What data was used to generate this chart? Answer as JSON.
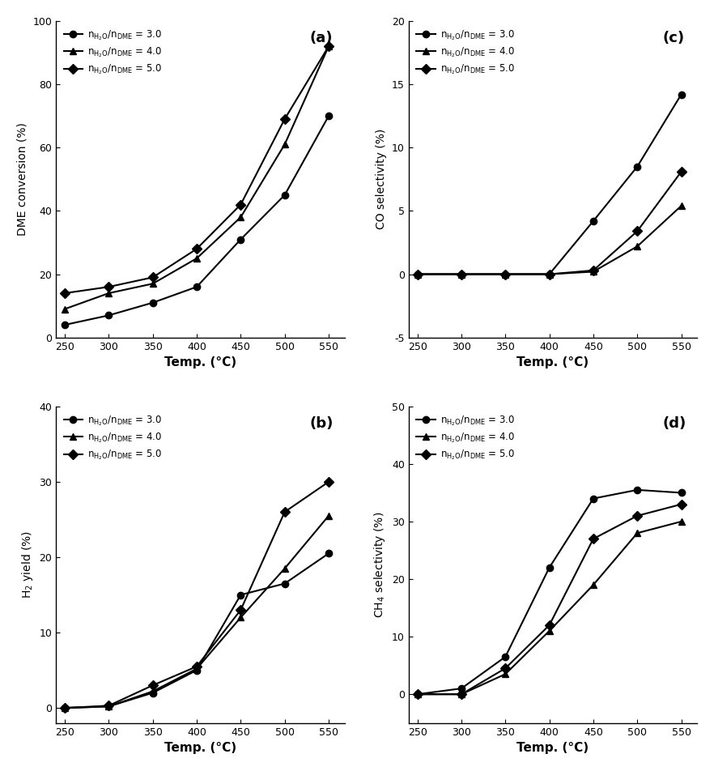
{
  "temp": [
    250,
    300,
    350,
    400,
    450,
    500,
    550
  ],
  "panel_a": {
    "title": "(a)",
    "ylabel": "DME conversion (%)",
    "ylim": [
      0,
      100
    ],
    "yticks": [
      0,
      20,
      40,
      60,
      80,
      100
    ],
    "series": {
      "r3": [
        4,
        7,
        11,
        16,
        31,
        45,
        70
      ],
      "r4": [
        9,
        14,
        17,
        25,
        38,
        61,
        92
      ],
      "r5": [
        14,
        16,
        19,
        28,
        42,
        69,
        92
      ]
    }
  },
  "panel_b": {
    "title": "(b)",
    "ylabel": "H$_2$ yield (%)",
    "ylim": [
      -2,
      40
    ],
    "yticks": [
      0,
      10,
      20,
      30,
      40
    ],
    "series": {
      "r3": [
        0.0,
        0.2,
        2.0,
        5.0,
        15,
        16.5,
        20.5
      ],
      "r4": [
        0.0,
        0.2,
        2.2,
        5.2,
        12,
        18.5,
        25.5
      ],
      "r5": [
        0.0,
        0.3,
        3.0,
        5.5,
        13,
        26,
        30
      ]
    }
  },
  "panel_c": {
    "title": "(c)",
    "ylabel": "CO selectivity (%)",
    "ylim": [
      -5,
      20
    ],
    "yticks": [
      -5,
      0,
      5,
      10,
      15,
      20
    ],
    "series": {
      "r3": [
        0,
        0,
        0,
        0,
        4.2,
        8.5,
        14.2
      ],
      "r4": [
        0,
        0,
        0,
        0,
        0.2,
        2.2,
        5.4
      ],
      "r5": [
        0,
        0,
        0,
        0,
        0.3,
        3.4,
        8.1
      ]
    }
  },
  "panel_d": {
    "title": "(d)",
    "ylabel": "CH$_4$ selectivity (%)",
    "ylim": [
      -5,
      50
    ],
    "yticks": [
      0,
      10,
      20,
      30,
      40,
      50
    ],
    "series": {
      "r3": [
        0,
        1,
        6.5,
        22,
        34,
        35.5,
        35
      ],
      "r4": [
        0,
        0,
        3.5,
        11,
        19,
        28,
        30
      ],
      "r5": [
        0,
        0,
        4.5,
        12,
        27,
        31,
        33
      ]
    }
  },
  "legend_labels": [
    "n$_{{H_2O}}$/n$_{{DME}}$ = 3.0",
    "n$_{{H_2O}}$/n$_{{DME}}$ = 4.0",
    "n$_{{H_2O}}$/n$_{{DME}}$ = 5.0"
  ],
  "markers": [
    "o",
    "^",
    "D"
  ],
  "line_color": "#000000",
  "xlabel": "Temp. (°C)",
  "xticks": [
    250,
    300,
    350,
    400,
    450,
    500,
    550
  ],
  "markersize": 6,
  "linewidth": 1.5
}
